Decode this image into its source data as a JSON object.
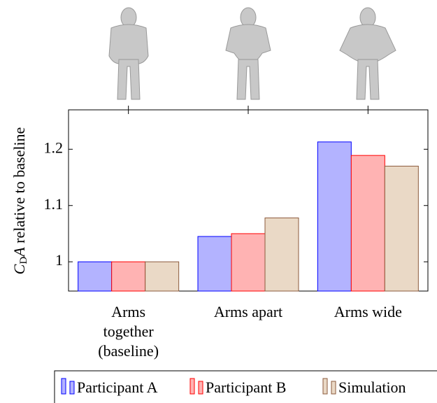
{
  "chart_data": {
    "type": "bar",
    "ylabel": {
      "symbol": "C",
      "subscript": "D",
      "symbol2": "A",
      "text": "relative to baseline"
    },
    "categories": [
      "Arms together (baseline)",
      "Arms apart",
      "Arms wide"
    ],
    "series": [
      {
        "name": "Participant A",
        "color": "#b3b3ff",
        "edge": "#0000ff",
        "values": [
          1.0,
          1.045,
          1.213
        ]
      },
      {
        "name": "Participant B",
        "color": "#ffb3b3",
        "edge": "#ff0000",
        "values": [
          1.0,
          1.05,
          1.189
        ]
      },
      {
        "name": "Simulation",
        "color": "#ead9c6",
        "edge": "#8b5a3c",
        "values": [
          1.0,
          1.078,
          1.17
        ]
      }
    ],
    "ylim": [
      0.948,
      1.27
    ],
    "yticks": [
      1,
      1.1,
      1.2
    ],
    "grid": false,
    "legend": "bottom"
  }
}
